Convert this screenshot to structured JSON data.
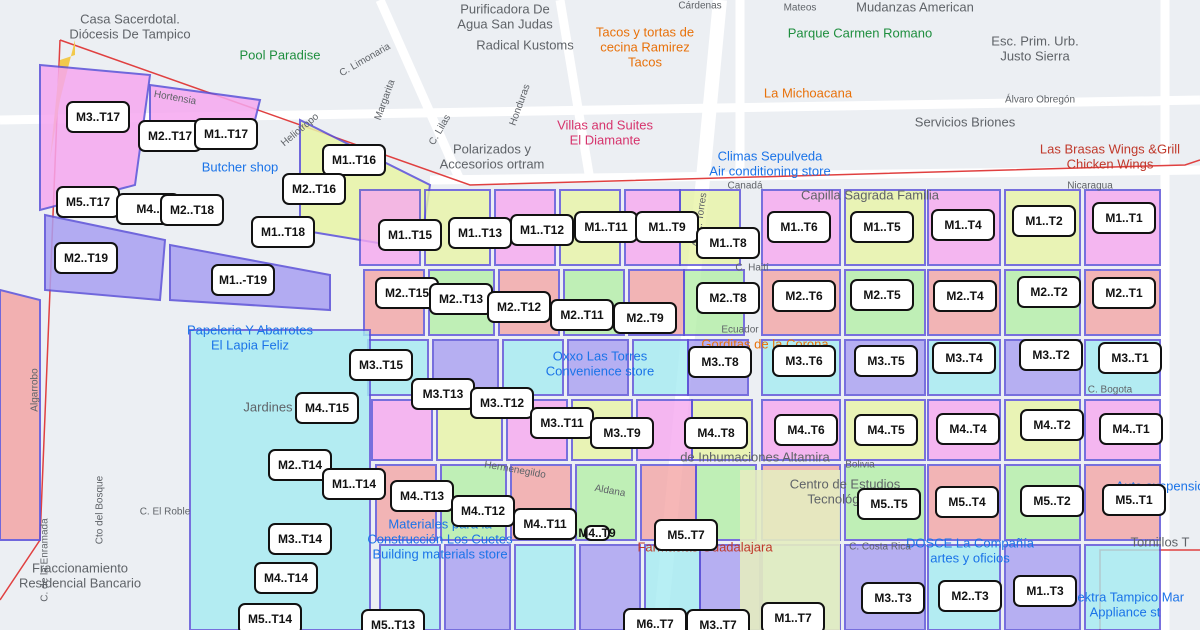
{
  "blocks": [
    "M3..T17",
    "M2..T17",
    "M1..T17",
    "M1..T16",
    "M2..T16",
    "M5..T17",
    "M4..",
    "M2..T18",
    "M1..T18",
    "M1..T15",
    "M1..T13",
    "M1..T12",
    "M1..T11",
    "M1..T9",
    "M1..T8",
    "M1..T6",
    "M1..T5",
    "M1..T4",
    "M1..T2",
    "M1..T1",
    "M2..T19",
    "M1..-T19",
    "M2..T15",
    "M2..T13",
    "M2..T12",
    "M2..T11",
    "M2..T9",
    "M2..T8",
    "M2..T6",
    "M2..T5",
    "M2..T4",
    "M2..T2",
    "M2..T1",
    "M3..T15",
    "M3.T13",
    "M3..T12",
    "M3..T11",
    "M3..T9",
    "M3..T8",
    "M3..T6",
    "M3..T5",
    "M3..T4",
    "M3..T2",
    "M3..T1",
    "M4..T15",
    "M4..T8",
    "M4..T6",
    "M4..T5",
    "M4..T4",
    "M4..T2",
    "M4..T1",
    "M2..T14",
    "M1..T14",
    "M4..T13",
    "M4..T12",
    "M4..T11",
    "M4..T9",
    "M5..T7",
    "M5..T5",
    "M5..T4",
    "M5..T2",
    "M5..T1",
    "M3..T14",
    "M4..T14",
    "M5..T14",
    "M5..T13",
    "M6..T7",
    "M3..T7",
    "M1..T7",
    "M3..T3",
    "M2..T3",
    "M1..T3"
  ],
  "places": [
    [
      "Casa Sacerdotal.",
      "Diócesis De Tampico"
    ],
    [
      "Purificadora De",
      "Agua San Judas"
    ],
    [
      "Pool Paradise"
    ],
    [
      "Radical Kustoms"
    ],
    [
      "Tacos y tortas de",
      "cecina Ramirez",
      "Tacos"
    ],
    [
      "Parque Carmen Romano"
    ],
    [
      "Mudanzas American"
    ],
    [
      "Esc. Prim. Urb.",
      "Justo Sierra"
    ],
    [
      "La Michoacana"
    ],
    [
      "Servicios Briones"
    ],
    [
      "Villas and Suites",
      "El Diamante"
    ],
    [
      "Polarizados y",
      "Accesorios ortram"
    ],
    [
      "Climas Sepulveda",
      "Air conditioning store"
    ],
    [
      "Las Brasas Wings &Grill",
      "Chicken Wings"
    ],
    [
      "Butcher shop"
    ],
    [
      "Papeleria Y Abarrotes",
      "El Lapia Feliz"
    ],
    [
      "Oxxo Las Torres",
      "Convenience store"
    ],
    [
      "Jardines"
    ],
    [
      "Centro de Estudios",
      "Tecnológicos"
    ],
    [
      "Materiales para la",
      "Construcción Los Cuetes",
      "Building materials store"
    ],
    [
      "Farmacias Guadalajara"
    ],
    [
      "Fraccionamiento",
      "Residencial Bancario"
    ],
    [
      "DOSCE La Compañía",
      "artes y oficios"
    ],
    [
      "Elektra Tampico Mar",
      "Appliance st"
    ],
    [
      "Capilla Sagrada Familia"
    ],
    [
      "de Inhumaciones Altamira"
    ],
    [
      "Gorditas de la Corona"
    ],
    [
      "Auto suspensio"
    ],
    [
      "Tornillos T"
    ]
  ],
  "streets": [
    "Álvaro Obregón",
    "Canadá",
    "Nicaragua",
    "Ecuador",
    "C. Bogota",
    "Bolivia",
    "C. Costa Rica",
    "C. Haití",
    "Av. L. Torres",
    "Hortensia",
    "Heliotropo",
    "Margarita",
    "C. Lilas",
    "Honduras",
    "C. Limonaria",
    "Cárdenas",
    "Mateos",
    "Aldana",
    "Hermenegildo",
    "C. El Roble",
    "Cto del Bosque",
    "C. de la Enramada",
    "Algarrobo"
  ]
}
